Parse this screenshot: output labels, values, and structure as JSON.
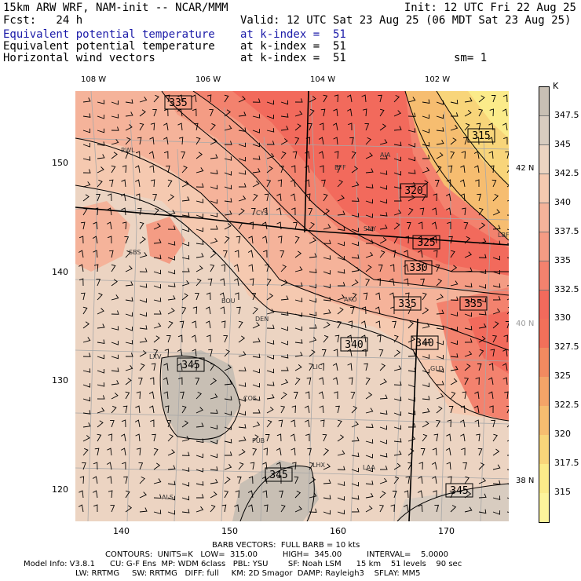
{
  "header": {
    "model": "15km ARW WRF, NAM-init -- NCAR/MMM",
    "init": "Init: 12 UTC Fri 22 Aug 25",
    "fcst": "Fcst:   24 h",
    "valid": "Valid: 12 UTC Sat 23 Aug 25 (06 MDT Sat 23 Aug 25)",
    "field1_name": "Equivalent potential temperature",
    "field1_level": "at k-index =  51",
    "field2_name": "Equivalent potential temperature",
    "field2_level": "at k-index =  51",
    "field3_name": "Horizontal wind vectors",
    "field3_level": "at k-index =  51",
    "smooth": "sm= 1"
  },
  "axes": {
    "lon_labels": [
      "108 W",
      "106 W",
      "104 W",
      "102 W"
    ],
    "lat_labels": [
      "42 N",
      "40 N",
      "38 N"
    ],
    "x_ticks": [
      "140",
      "150",
      "160",
      "170"
    ],
    "y_ticks": [
      "150",
      "140",
      "130",
      "120"
    ]
  },
  "colorbar": {
    "unit": "K",
    "labels": [
      "347.5",
      "345",
      "342.5",
      "340",
      "337.5",
      "335",
      "332.5",
      "330",
      "327.5",
      "325",
      "322.5",
      "320",
      "317.5",
      "315"
    ],
    "colors": [
      "#c8bfb4",
      "#d8ccc0",
      "#ecd4c2",
      "#f5c9b0",
      "#f5b39a",
      "#f49c84",
      "#f3826e",
      "#f26a5c",
      "#f2705a",
      "#f28a60",
      "#f4a468",
      "#f6bd70",
      "#f8d57a",
      "#fbeb8a",
      "#fdf49c"
    ]
  },
  "map": {
    "stations": [
      "RWL",
      "AIA",
      "BFF",
      "CYS",
      "SNY",
      "LBF",
      "SBS",
      "BOU",
      "DEN",
      "AKO",
      "LXV",
      "LIC",
      "GLD",
      "COS",
      "PUB",
      "LHX",
      "LAA",
      "ALS"
    ],
    "contour_labels": [
      "335",
      "315",
      "320",
      "325",
      "330",
      "335",
      "335",
      "340",
      "340",
      "345",
      "345",
      "345"
    ]
  },
  "footer": {
    "barb": "BARB VECTORS:  FULL BARB = 10 kts",
    "contours": "CONTOURS:  UNITS=K   LOW=  315.00          HIGH=  345.00          INTERVAL=    5.0000",
    "model_info": "Model Info: V3.8.1      CU: G-F Ens  MP: WDM 6class   PBL: YSU        SF: Noah LSM      15 km    51 levels    90 sec",
    "physics": "LW: RRTMG     SW: RRTMG   DIFF: full     KM: 2D Smagor  DAMP: Rayleigh3    SFLAY: MM5"
  }
}
